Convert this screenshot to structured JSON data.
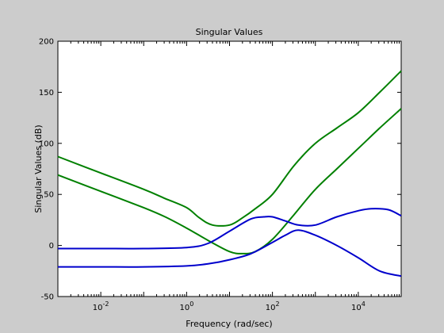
{
  "chart_data": {
    "type": "line",
    "title": "Singular Values",
    "xlabel": "Frequency (rad/sec)",
    "ylabel": "Singular Values (dB)",
    "xscale": "log",
    "xlim_log10": [
      -3,
      5
    ],
    "ylim": [
      -50,
      200
    ],
    "y_ticks": [
      -50,
      0,
      50,
      100,
      150,
      200
    ],
    "x_tick_exponents": [
      -2,
      0,
      2,
      4
    ],
    "x_tick_base": "10",
    "grid": false,
    "colors": {
      "green": "#008000",
      "blue": "#0000cc",
      "background": "#cccccc",
      "axes": "#ffffff"
    },
    "series": [
      {
        "color": "green",
        "x_log10": [
          -3,
          -2,
          -1,
          -0.5,
          0,
          0.3,
          0.6,
          1,
          1.3,
          1.6,
          2,
          2.5,
          3,
          3.5,
          4,
          4.5,
          5
        ],
        "values": [
          87,
          71,
          55,
          46,
          37,
          27,
          20,
          20,
          27,
          36,
          50,
          78,
          100,
          115,
          130,
          150,
          171
        ]
      },
      {
        "color": "green",
        "x_log10": [
          -3,
          -2,
          -1,
          -0.5,
          0,
          0.5,
          1,
          1.3,
          1.6,
          2,
          2.5,
          3,
          3.5,
          4,
          4.5,
          5
        ],
        "values": [
          69,
          53,
          37,
          28,
          17,
          5,
          -6,
          -8,
          -6,
          6,
          30,
          55,
          75,
          95,
          115,
          134
        ]
      },
      {
        "color": "blue",
        "x_log10": [
          -3,
          -2,
          -1,
          0,
          0.5,
          1,
          1.5,
          1.8,
          2.0,
          2.3,
          2.6,
          3,
          3.5,
          4,
          4.3,
          4.7,
          5
        ],
        "values": [
          -3,
          -3,
          -3,
          -2,
          2,
          14,
          26,
          28,
          28,
          24,
          20,
          20,
          28,
          34,
          36,
          35,
          29
        ]
      },
      {
        "color": "blue",
        "x_log10": [
          -3,
          -2,
          -1,
          0,
          0.5,
          1,
          1.5,
          2,
          2.3,
          2.6,
          3,
          3.5,
          4,
          4.5,
          5
        ],
        "values": [
          -21,
          -21,
          -21,
          -20,
          -18,
          -14,
          -8,
          3,
          10,
          15,
          10,
          0,
          -12,
          -25,
          -30
        ]
      }
    ]
  }
}
